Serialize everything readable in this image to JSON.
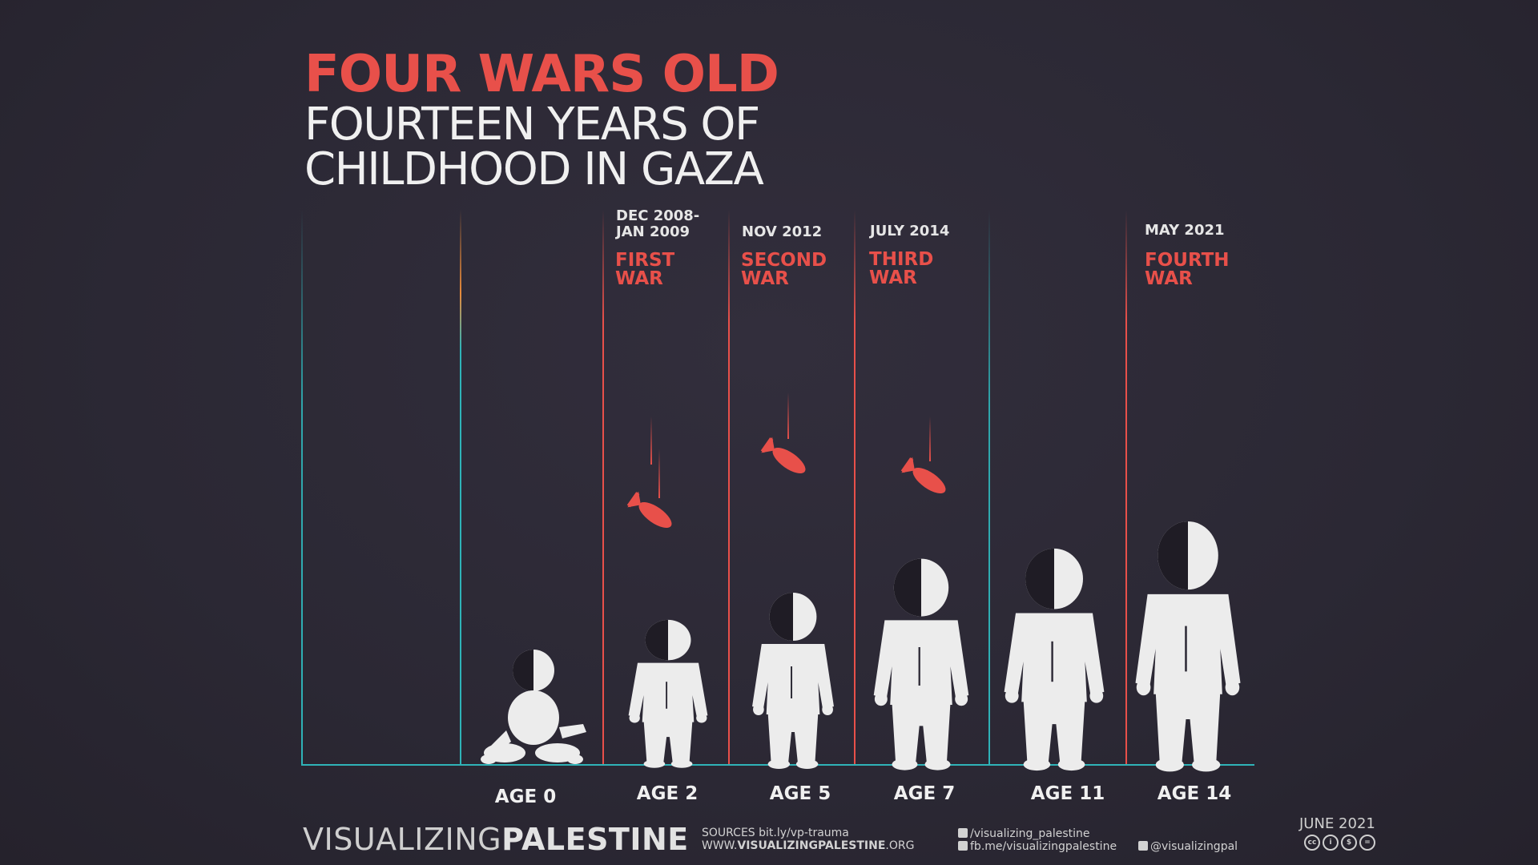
{
  "title": {
    "main": "FOUR WARS OLD",
    "line1": "FOURTEEN YEARS OF",
    "line2": "CHILDHOOD IN GAZA"
  },
  "wars": [
    {
      "date_line1": "DEC 2008-",
      "date_line2": "JAN 2009",
      "war_line1": "FIRST",
      "war_line2": "WAR"
    },
    {
      "date_line1": "NOV 2012",
      "date_line2": "",
      "war_line1": "SECOND",
      "war_line2": "WAR"
    },
    {
      "date_line1": "JULY 2014",
      "date_line2": "",
      "war_line1": "THIRD",
      "war_line2": "WAR"
    },
    {
      "date_line1": "MAY 2021",
      "date_line2": "",
      "war_line1": "FOURTH",
      "war_line2": "WAR"
    }
  ],
  "ages": [
    "AGE 0",
    "AGE 2",
    "AGE 5",
    "AGE 7",
    "AGE 11",
    "AGE 14"
  ],
  "colors": {
    "war_accent": "#e8504a",
    "timeline_teal": "#2fb3b8",
    "timeline_orange": "#e88a3a",
    "figure": "#ececec",
    "background": "#2b2834"
  },
  "footer": {
    "brand_light": "VISUALIZING",
    "brand_bold": "PALESTINE",
    "sources_line": "SOURCES bit.ly/vp-trauma",
    "website_prefix": "WWW.",
    "website_bold": "VISUALIZINGPALESTINE",
    "website_suffix": ".ORG",
    "instagram": "/visualizing_palestine",
    "facebook": "fb.me/visualizingpalestine",
    "twitter": "@visualizingpal",
    "date": "JUNE 2021",
    "license_icons": [
      "cc",
      "by",
      "nc",
      "nd"
    ]
  }
}
